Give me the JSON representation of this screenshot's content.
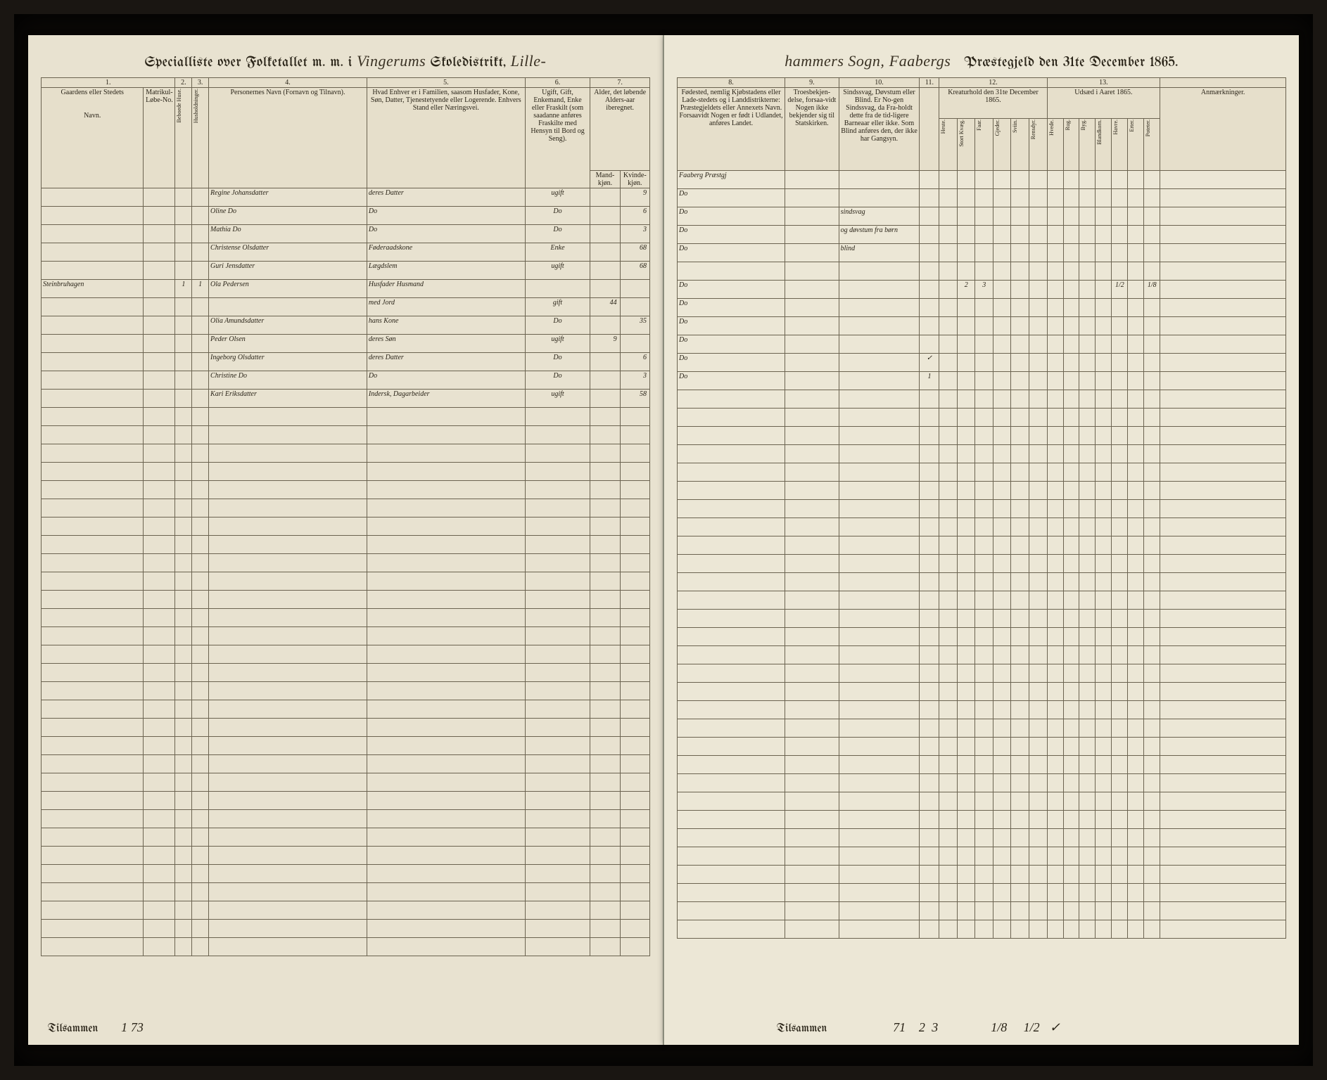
{
  "header_left": {
    "prefix": "Specialliste over Folketallet m. m. i",
    "district": "Vingerums",
    "mid": "Skoledistrikt,",
    "sogn": "Lille-"
  },
  "header_right": {
    "sogn2": "hammers Sogn,",
    "prg": "Faabergs",
    "suffix": "Præstegjeld den 31te December 1865."
  },
  "colnums_left": [
    "1.",
    "2.",
    "3.",
    "4.",
    "5.",
    "6.",
    "7."
  ],
  "colnums_right": [
    "8.",
    "9.",
    "10.",
    "11.",
    "12.",
    "13."
  ],
  "headers_left": {
    "c1a": "Gaardens eller Stedets",
    "c1b": "Navn.",
    "c1c": "Matrikul-Løbe-No.",
    "c2": "Beboede Huse.",
    "c3": "Husholdninger.",
    "c4": "Personernes Navn (Fornavn og Tilnavn).",
    "c5": "Hvad Enhver er i Familien, saasom Husfader, Kone, Søn, Datter, Tjenestetyende eller Logerende. Enhvers Stand eller Næringsvei.",
    "c6": "Ugift, Gift, Enkemand, Enke eller Fraskilt (som saadanne anføres Fraskilte med Hensyn til Bord og Seng).",
    "c7a": "Alder, det løbende Alders-aar iberegnet.",
    "c7m": "Mand-kjøn.",
    "c7k": "Kvinde-kjøn."
  },
  "headers_right": {
    "c8": "Fødested, nemlig Kjøbstadens eller Lade-stedets og i Landdistrikterne: Præstegjeldets eller Annexets Navn. Forsaavidt Nogen er født i Udlandet, anføres Landet.",
    "c9": "Troesbekjen-delse, forsaa-vidt Nogen ikke bekjender sig til Statskirken.",
    "c10": "Sindssvag, Døvstum eller Blind. Er No-gen Sindssvag, da Fra-holdt dette fra de tid-ligere Barneaar eller ikke. Som Blind anføres den, der ikke har Gangsyn.",
    "c11": "",
    "c12": "Kreaturhold den 31te December 1865.",
    "c12_sub": [
      "Heste.",
      "Stort Kvæg.",
      "Faar.",
      "Gjeder.",
      "Sviin.",
      "Rensdyr."
    ],
    "c13": "Udsæd i Aaret 1865.",
    "c13_sub": [
      "Hvede.",
      "Rug.",
      "Byg.",
      "Blandkorn.",
      "Havre.",
      "Erter.",
      "Poteter."
    ],
    "anm": "Anmærkninger."
  },
  "rows_left": [
    {
      "c1": "",
      "c4": "Regine Johansdatter",
      "c5": "deres Datter",
      "c6": "ugift",
      "c7k": "9"
    },
    {
      "c1": "",
      "c4": "Oline Do",
      "c5": "Do",
      "c6": "Do",
      "c7k": "6"
    },
    {
      "c1": "",
      "c4": "Mathia Do",
      "c5": "Do",
      "c6": "Do",
      "c7k": "3"
    },
    {
      "c1": "",
      "c4": "Christense Olsdatter",
      "c5": "Føderaadskone",
      "c6": "Enke",
      "c7k": "68"
    },
    {
      "c1": "",
      "c4": "Guri Jensdatter",
      "c5": "Lægdslem",
      "c6": "ugift",
      "c7k": "68"
    },
    {
      "c1": "Steinbruhagen",
      "c2": "1",
      "c3": "1",
      "c4": "Ola Pedersen",
      "c5": "Husfader Husmand",
      "c6": "",
      "c7m": ""
    },
    {
      "c1": "",
      "c4": "",
      "c5": "med Jord",
      "c6": "gift",
      "c7m": "44"
    },
    {
      "c1": "",
      "c4": "Olia Amundsdatter",
      "c5": "hans Kone",
      "c6": "Do",
      "c7k": "35"
    },
    {
      "c1": "",
      "c4": "Peder Olsen",
      "c5": "deres Søn",
      "c6": "ugift",
      "c7m": "9"
    },
    {
      "c1": "",
      "c4": "Ingeborg Olsdatter",
      "c5": "deres Datter",
      "c6": "Do",
      "c7k": "6"
    },
    {
      "c1": "",
      "c4": "Christine Do",
      "c5": "Do",
      "c6": "Do",
      "c7k": "3"
    },
    {
      "c1": "",
      "c4": "Kari Eriksdatter",
      "c5": "Indersk, Dagarbeider",
      "c6": "ugift",
      "c7k": "58"
    }
  ],
  "rows_right": [
    {
      "c8": "Faaberg Præstgj"
    },
    {
      "c8": "Do"
    },
    {
      "c8": "Do",
      "c10": "sindsvag"
    },
    {
      "c8": "Do",
      "c10": "og døvstum fra børn"
    },
    {
      "c8": "Do",
      "c10": "blind"
    },
    {
      "c8": ""
    },
    {
      "c8": "Do",
      "h": "",
      "k": "2",
      "f": "3",
      "pot": "1/8",
      "hav": "1/2"
    },
    {
      "c8": "Do"
    },
    {
      "c8": "Do"
    },
    {
      "c8": "Do"
    },
    {
      "c8": "Do",
      "c11": "✓"
    },
    {
      "c8": "Do",
      "c11": "1"
    }
  ],
  "empty_rows": 30,
  "totals_left": {
    "label": "Tilsammen",
    "c2": "1",
    "c3": "73"
  },
  "totals_right": {
    "label": "Tilsammen",
    "c11": "71",
    "k": "2",
    "f": "3",
    "pot": "1/8",
    "hav": "1/2",
    "last": "✓"
  }
}
